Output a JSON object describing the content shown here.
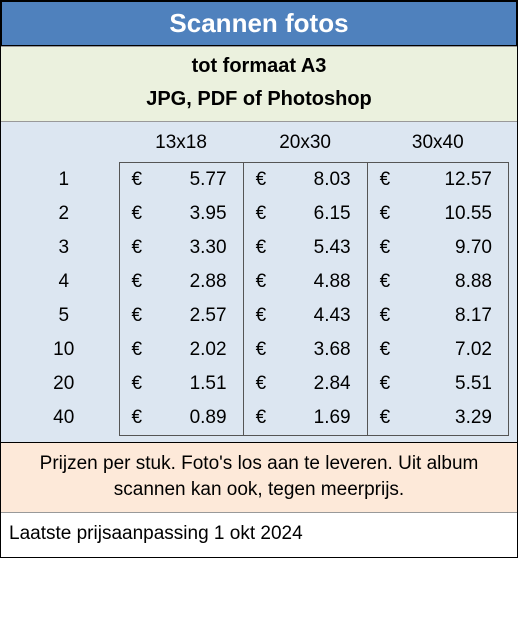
{
  "title": "Scannen fotos",
  "subtitle1": "tot formaat A3",
  "subtitle2": "JPG, PDF of Photoshop",
  "table": {
    "type": "table",
    "background_color": "#dce6f1",
    "border_color": "#555555",
    "font_size": 19,
    "currency_symbol": "€",
    "columns": [
      "13x18",
      "20x30",
      "30x40"
    ],
    "quantities": [
      1,
      2,
      3,
      4,
      5,
      10,
      20,
      40
    ],
    "rows": [
      [
        "5.77",
        "8.03",
        "12.57"
      ],
      [
        "3.95",
        "6.15",
        "10.55"
      ],
      [
        "3.30",
        "5.43",
        "9.70"
      ],
      [
        "2.88",
        "4.88",
        "8.88"
      ],
      [
        "2.57",
        "4.43",
        "8.17"
      ],
      [
        "2.02",
        "3.68",
        "7.02"
      ],
      [
        "1.51",
        "2.84",
        "5.51"
      ],
      [
        "0.89",
        "1.69",
        "3.29"
      ]
    ]
  },
  "note": "Prijzen per stuk. Foto's los aan te leveren. Uit album scannen kan ook, tegen meerprijs.",
  "footer": "Laatste prijsaanpassing 1 okt 2024",
  "colors": {
    "title_bg": "#4f81bd",
    "title_text": "#ffffff",
    "subheader_bg": "#ebf1de",
    "table_bg": "#dce6f1",
    "note_bg": "#fde9d9",
    "border": "#000000"
  }
}
